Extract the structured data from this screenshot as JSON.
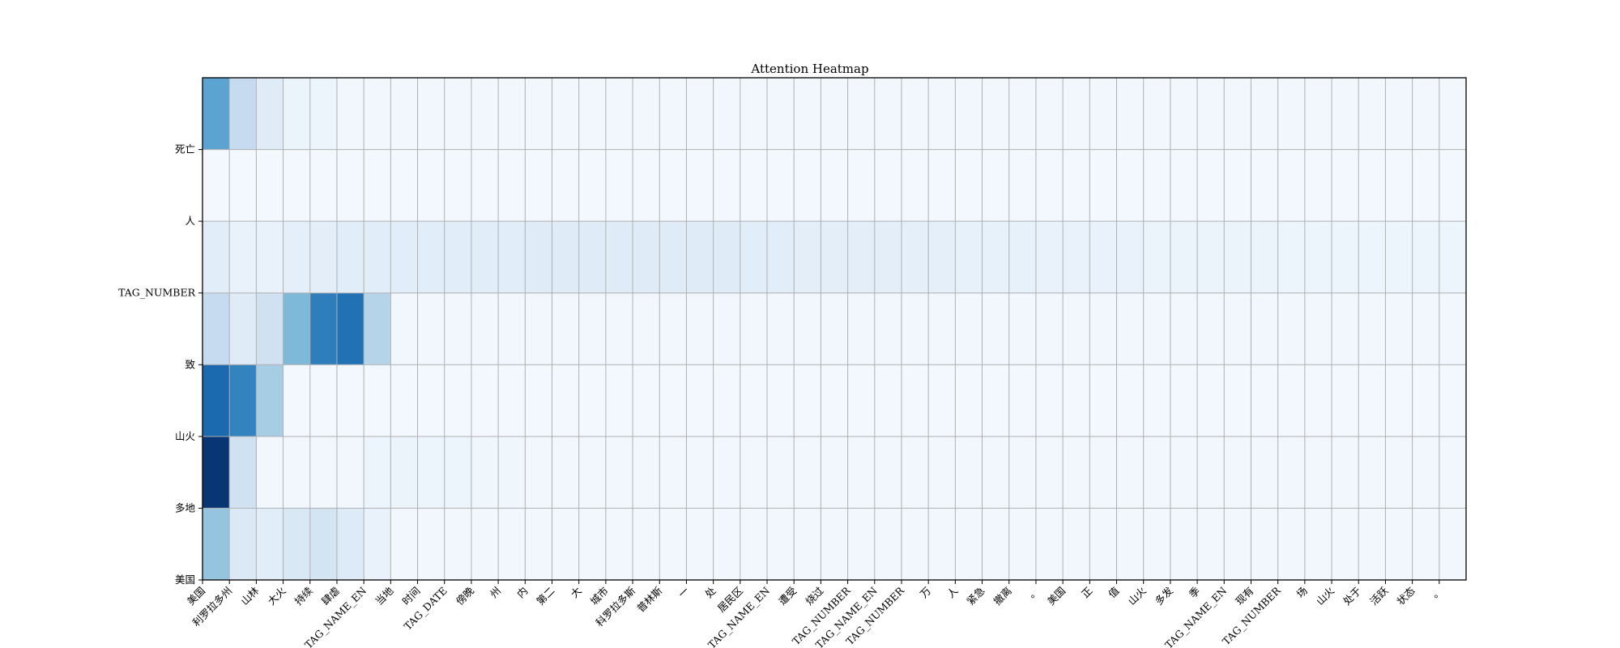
{
  "chart_data": {
    "type": "heatmap",
    "title": "Attention Heatmap",
    "colormap": "Blues",
    "grid": true,
    "grid_color": "#b0b0b0",
    "x_labels": [
      "美国",
      "利罗拉多州",
      "山林",
      "大火",
      "持续",
      "肆虐",
      "TAG_NAME_EN",
      "当地",
      "时间",
      "TAG_DATE",
      "傍晚",
      "州",
      "内",
      "第二",
      "大",
      "城市",
      "科罗拉多斯",
      "普林斯",
      "一",
      "处",
      "居民区",
      "TAG_NAME_EN",
      "遭受",
      "烧过",
      "TAG_NUMBER",
      "TAG_NAME_EN",
      "TAG_NUMBER",
      "万",
      "人",
      "紧急",
      "撤离",
      "。",
      "美国",
      "正",
      "值",
      "山火",
      "多发",
      "季",
      "TAG_NAME_EN",
      "现有",
      "TAG_NUMBER",
      "场",
      "山火",
      "处于",
      "活跃",
      "状态",
      "。"
    ],
    "y_labels": [
      "美国",
      "多地",
      "山火",
      "致",
      "TAG_NUMBER",
      "人",
      "死亡"
    ],
    "y_order": "bottom-to-top",
    "value_range": [
      0,
      1
    ],
    "rows_top_to_bottom": [
      [
        0.55,
        0.25,
        0.12,
        0.06,
        0.05,
        0.03,
        0.03,
        0.03,
        0.03,
        0.03,
        0.03,
        0.03,
        0.03,
        0.03,
        0.03,
        0.03,
        0.03,
        0.03,
        0.03,
        0.03,
        0.03,
        0.03,
        0.03,
        0.03,
        0.03,
        0.03,
        0.03,
        0.03,
        0.03,
        0.03,
        0.03,
        0.03,
        0.03,
        0.03,
        0.03,
        0.03,
        0.03,
        0.03,
        0.03,
        0.03,
        0.03,
        0.03,
        0.03,
        0.03,
        0.03,
        0.03,
        0.03
      ],
      [
        0.02,
        0.02,
        0.02,
        0.02,
        0.02,
        0.02,
        0.02,
        0.02,
        0.02,
        0.02,
        0.02,
        0.02,
        0.02,
        0.02,
        0.02,
        0.02,
        0.02,
        0.02,
        0.02,
        0.02,
        0.02,
        0.02,
        0.02,
        0.02,
        0.02,
        0.02,
        0.02,
        0.02,
        0.02,
        0.02,
        0.02,
        0.02,
        0.02,
        0.02,
        0.02,
        0.02,
        0.02,
        0.02,
        0.02,
        0.02,
        0.02,
        0.02,
        0.02,
        0.02,
        0.02,
        0.02,
        0.02
      ],
      [
        0.11,
        0.07,
        0.07,
        0.09,
        0.1,
        0.11,
        0.11,
        0.11,
        0.11,
        0.11,
        0.11,
        0.11,
        0.12,
        0.12,
        0.12,
        0.12,
        0.12,
        0.12,
        0.12,
        0.12,
        0.11,
        0.11,
        0.1,
        0.1,
        0.1,
        0.1,
        0.09,
        0.09,
        0.08,
        0.08,
        0.08,
        0.07,
        0.07,
        0.07,
        0.07,
        0.06,
        0.06,
        0.06,
        0.06,
        0.06,
        0.05,
        0.05,
        0.05,
        0.05,
        0.05,
        0.05,
        0.05
      ],
      [
        0.25,
        0.12,
        0.2,
        0.45,
        0.7,
        0.75,
        0.3,
        0.03,
        0.03,
        0.03,
        0.03,
        0.03,
        0.03,
        0.03,
        0.03,
        0.03,
        0.03,
        0.03,
        0.03,
        0.03,
        0.03,
        0.03,
        0.03,
        0.03,
        0.03,
        0.03,
        0.03,
        0.03,
        0.03,
        0.03,
        0.03,
        0.03,
        0.03,
        0.03,
        0.03,
        0.03,
        0.03,
        0.03,
        0.03,
        0.03,
        0.03,
        0.03,
        0.03,
        0.03,
        0.03,
        0.03,
        0.03
      ],
      [
        0.78,
        0.68,
        0.35,
        0.02,
        0.02,
        0.02,
        0.02,
        0.02,
        0.02,
        0.02,
        0.02,
        0.02,
        0.02,
        0.02,
        0.02,
        0.02,
        0.02,
        0.02,
        0.02,
        0.02,
        0.02,
        0.02,
        0.02,
        0.02,
        0.02,
        0.02,
        0.02,
        0.02,
        0.02,
        0.02,
        0.02,
        0.02,
        0.02,
        0.02,
        0.02,
        0.02,
        0.02,
        0.02,
        0.02,
        0.02,
        0.02,
        0.02,
        0.02,
        0.02,
        0.02,
        0.02,
        0.02
      ],
      [
        0.98,
        0.2,
        0.03,
        0.03,
        0.03,
        0.03,
        0.05,
        0.06,
        0.05,
        0.05,
        0.04,
        0.04,
        0.03,
        0.03,
        0.03,
        0.03,
        0.03,
        0.03,
        0.03,
        0.03,
        0.03,
        0.03,
        0.03,
        0.03,
        0.03,
        0.03,
        0.03,
        0.03,
        0.03,
        0.03,
        0.03,
        0.03,
        0.03,
        0.03,
        0.03,
        0.03,
        0.03,
        0.03,
        0.03,
        0.03,
        0.03,
        0.03,
        0.03,
        0.03,
        0.03,
        0.03,
        0.03
      ],
      [
        0.4,
        0.14,
        0.11,
        0.15,
        0.18,
        0.13,
        0.07,
        0.03,
        0.03,
        0.03,
        0.03,
        0.03,
        0.03,
        0.03,
        0.03,
        0.03,
        0.03,
        0.03,
        0.03,
        0.03,
        0.03,
        0.03,
        0.03,
        0.03,
        0.03,
        0.03,
        0.03,
        0.03,
        0.03,
        0.03,
        0.03,
        0.03,
        0.03,
        0.03,
        0.03,
        0.03,
        0.03,
        0.03,
        0.03,
        0.03,
        0.03,
        0.03,
        0.03,
        0.03,
        0.03,
        0.03,
        0.03
      ]
    ]
  }
}
